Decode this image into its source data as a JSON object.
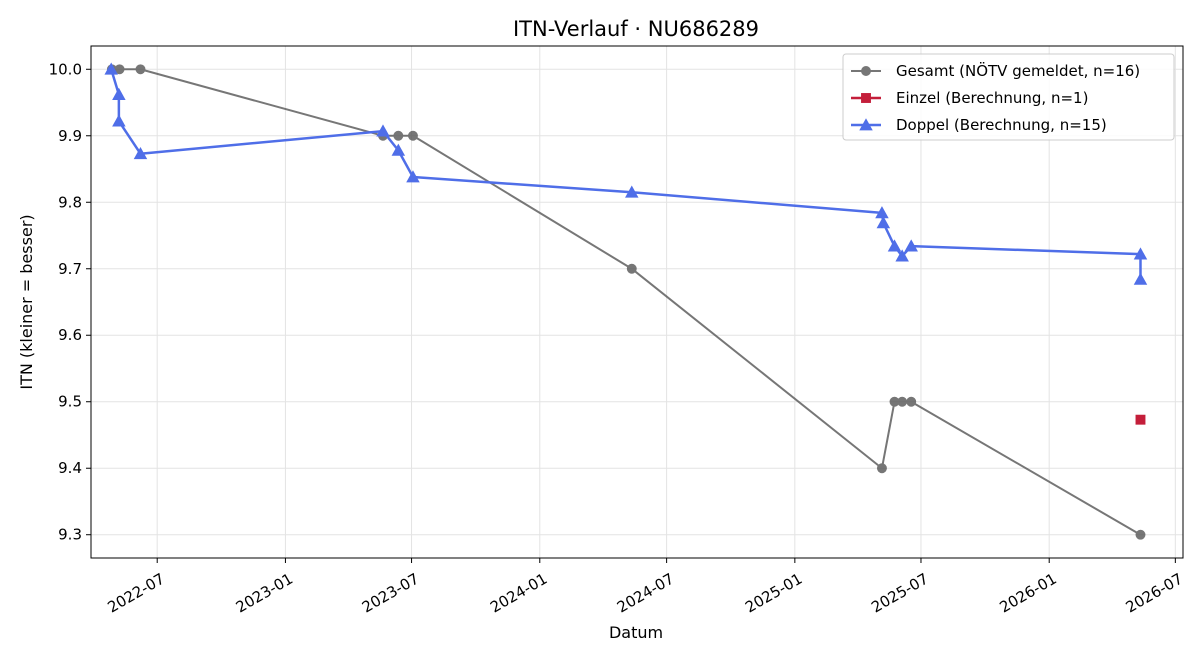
{
  "chart_data": {
    "type": "line",
    "title": "ITN-Verlauf · NU686289",
    "xlabel": "Datum",
    "ylabel": "ITN  (kleiner = besser)",
    "x_axis": "date",
    "xlim": [
      "2022-03-28",
      "2026-07-12"
    ],
    "ylim": [
      9.265,
      10.035
    ],
    "x_ticks": [
      "2022-07",
      "2023-01",
      "2023-07",
      "2024-01",
      "2024-07",
      "2025-01",
      "2025-07",
      "2026-01",
      "2026-07"
    ],
    "x_tick_dates": [
      "2022-07-01",
      "2023-01-01",
      "2023-07-01",
      "2024-01-01",
      "2024-07-01",
      "2025-01-01",
      "2025-07-01",
      "2026-01-01",
      "2026-07-01"
    ],
    "y_ticks": [
      "9.3",
      "9.4",
      "9.5",
      "9.6",
      "9.7",
      "9.8",
      "9.9",
      "10.0"
    ],
    "y_tick_values": [
      9.3,
      9.4,
      9.5,
      9.6,
      9.7,
      9.8,
      9.9,
      10.0
    ],
    "grid": true,
    "legend_position": "top-right",
    "series": [
      {
        "name": "Gesamt (NÖTV gemeldet, n=16)",
        "color": "#555555",
        "marker": "circle",
        "points": [
          {
            "x": "2022-04-27",
            "y": 10.0
          },
          {
            "x": "2022-05-08",
            "y": 10.0
          },
          {
            "x": "2022-06-07",
            "y": 10.0
          },
          {
            "x": "2023-05-21",
            "y": 9.9
          },
          {
            "x": "2023-06-12",
            "y": 9.9
          },
          {
            "x": "2023-07-03",
            "y": 9.9
          },
          {
            "x": "2024-05-12",
            "y": 9.7
          },
          {
            "x": "2025-05-06",
            "y": 9.4
          },
          {
            "x": "2025-05-24",
            "y": 9.5
          },
          {
            "x": "2025-06-04",
            "y": 9.5
          },
          {
            "x": "2025-06-17",
            "y": 9.5
          },
          {
            "x": "2026-05-12",
            "y": 9.3
          }
        ]
      },
      {
        "name": "Einzel (Berechnung, n=1)",
        "color": "#c41e3a",
        "marker": "square",
        "points": [
          {
            "x": "2026-05-12",
            "y": 9.473
          }
        ]
      },
      {
        "name": "Doppel (Berechnung, n=15)",
        "color": "#4f6ee8",
        "marker": "triangle",
        "points": [
          {
            "x": "2022-04-26",
            "y": 10.0
          },
          {
            "x": "2022-05-07",
            "y": 9.962
          },
          {
            "x": "2022-05-07",
            "y": 9.922
          },
          {
            "x": "2022-06-07",
            "y": 9.873
          },
          {
            "x": "2023-05-21",
            "y": 9.907
          },
          {
            "x": "2023-06-12",
            "y": 9.878
          },
          {
            "x": "2023-07-03",
            "y": 9.838
          },
          {
            "x": "2024-05-12",
            "y": 9.815
          },
          {
            "x": "2025-05-06",
            "y": 9.784
          },
          {
            "x": "2025-05-08",
            "y": 9.769
          },
          {
            "x": "2025-05-24",
            "y": 9.734
          },
          {
            "x": "2025-06-04",
            "y": 9.719
          },
          {
            "x": "2025-06-17",
            "y": 9.734
          },
          {
            "x": "2026-05-12",
            "y": 9.722
          },
          {
            "x": "2026-05-12",
            "y": 9.684
          }
        ]
      }
    ]
  }
}
